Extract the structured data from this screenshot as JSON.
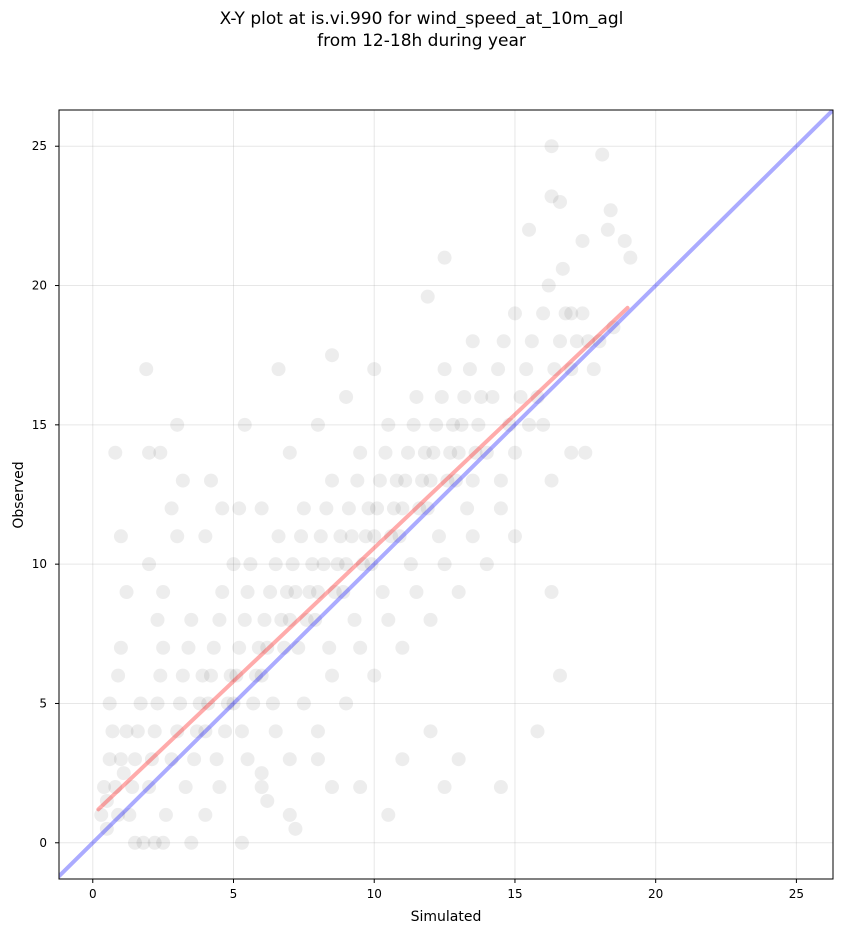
{
  "chart_data": {
    "type": "scatter",
    "title_lines": [
      "X-Y plot at is.vi.990 for wind_speed_at_10m_agl",
      "from 12-18h during year"
    ],
    "xlabel": "Simulated",
    "ylabel": "Observed",
    "xlim": [
      -1.2,
      26.3
    ],
    "ylim": [
      -1.3,
      26.3
    ],
    "xticks": [
      0,
      5,
      10,
      15,
      20,
      25
    ],
    "yticks": [
      0,
      5,
      10,
      15,
      20,
      25
    ],
    "grid": true,
    "point_color": "#000000",
    "point_alpha": 0.07,
    "one_to_one_color": "#0000ff",
    "fit_line_color": "#ff0000",
    "fit_line": {
      "x": [
        0.2,
        19.0
      ],
      "y": [
        1.2,
        19.2
      ]
    },
    "one_to_one_line": {
      "x": [
        -1.2,
        26.3
      ],
      "y": [
        -1.2,
        26.3
      ]
    },
    "points": [
      [
        0.3,
        1.0
      ],
      [
        0.4,
        2.0
      ],
      [
        0.5,
        1.5
      ],
      [
        0.6,
        3.0
      ],
      [
        0.5,
        0.5
      ],
      [
        0.8,
        2.0
      ],
      [
        0.9,
        1.0
      ],
      [
        1.0,
        3.0
      ],
      [
        1.1,
        2.5
      ],
      [
        1.2,
        4.0
      ],
      [
        0.7,
        4.0
      ],
      [
        0.6,
        5.0
      ],
      [
        0.9,
        6.0
      ],
      [
        1.0,
        7.0
      ],
      [
        1.3,
        1.0
      ],
      [
        1.4,
        2.0
      ],
      [
        1.5,
        3.0
      ],
      [
        1.6,
        4.0
      ],
      [
        1.7,
        5.0
      ],
      [
        1.8,
        0.0
      ],
      [
        2.0,
        2.0
      ],
      [
        2.1,
        3.0
      ],
      [
        2.2,
        4.0
      ],
      [
        2.3,
        5.0
      ],
      [
        2.4,
        6.0
      ],
      [
        2.5,
        7.0
      ],
      [
        2.6,
        1.0
      ],
      [
        2.2,
        0.0
      ],
      [
        2.3,
        8.0
      ],
      [
        2.5,
        9.0
      ],
      [
        2.8,
        3.0
      ],
      [
        3.0,
        4.0
      ],
      [
        3.1,
        5.0
      ],
      [
        3.2,
        6.0
      ],
      [
        3.3,
        2.0
      ],
      [
        3.4,
        7.0
      ],
      [
        3.5,
        8.0
      ],
      [
        3.6,
        3.0
      ],
      [
        3.7,
        4.0
      ],
      [
        3.8,
        5.0
      ],
      [
        3.9,
        6.0
      ],
      [
        4.0,
        4.0
      ],
      [
        4.1,
        5.0
      ],
      [
        4.2,
        6.0
      ],
      [
        4.3,
        7.0
      ],
      [
        4.4,
        3.0
      ],
      [
        4.5,
        8.0
      ],
      [
        4.6,
        9.0
      ],
      [
        4.7,
        4.0
      ],
      [
        4.8,
        5.0
      ],
      [
        4.9,
        6.0
      ],
      [
        5.0,
        5.0
      ],
      [
        5.1,
        6.0
      ],
      [
        5.2,
        7.0
      ],
      [
        5.3,
        4.0
      ],
      [
        5.4,
        8.0
      ],
      [
        5.5,
        9.0
      ],
      [
        5.6,
        10.0
      ],
      [
        5.7,
        5.0
      ],
      [
        5.8,
        6.0
      ],
      [
        5.9,
        7.0
      ],
      [
        6.0,
        6.0
      ],
      [
        6.1,
        8.0
      ],
      [
        6.2,
        7.0
      ],
      [
        6.3,
        9.0
      ],
      [
        6.4,
        5.0
      ],
      [
        6.5,
        10.0
      ],
      [
        6.6,
        11.0
      ],
      [
        6.7,
        8.0
      ],
      [
        6.8,
        7.0
      ],
      [
        6.9,
        9.0
      ],
      [
        7.0,
        8.0
      ],
      [
        7.1,
        10.0
      ],
      [
        7.2,
        9.0
      ],
      [
        7.3,
        7.0
      ],
      [
        7.4,
        11.0
      ],
      [
        7.5,
        12.0
      ],
      [
        7.6,
        8.0
      ],
      [
        7.7,
        9.0
      ],
      [
        7.8,
        10.0
      ],
      [
        7.9,
        8.0
      ],
      [
        8.0,
        9.0
      ],
      [
        8.1,
        11.0
      ],
      [
        8.2,
        10.0
      ],
      [
        8.3,
        12.0
      ],
      [
        8.4,
        7.0
      ],
      [
        8.5,
        13.0
      ],
      [
        8.6,
        9.0
      ],
      [
        8.7,
        10.0
      ],
      [
        8.8,
        11.0
      ],
      [
        8.9,
        9.0
      ],
      [
        9.0,
        10.0
      ],
      [
        9.1,
        12.0
      ],
      [
        9.2,
        11.0
      ],
      [
        9.3,
        8.0
      ],
      [
        9.4,
        13.0
      ],
      [
        9.5,
        14.0
      ],
      [
        9.6,
        10.0
      ],
      [
        9.7,
        11.0
      ],
      [
        9.8,
        12.0
      ],
      [
        9.9,
        10.0
      ],
      [
        10.0,
        11.0
      ],
      [
        10.1,
        12.0
      ],
      [
        10.2,
        13.0
      ],
      [
        10.3,
        9.0
      ],
      [
        10.4,
        14.0
      ],
      [
        10.5,
        15.0
      ],
      [
        10.6,
        11.0
      ],
      [
        10.7,
        12.0
      ],
      [
        10.8,
        13.0
      ],
      [
        10.9,
        11.0
      ],
      [
        11.0,
        12.0
      ],
      [
        11.1,
        13.0
      ],
      [
        11.2,
        14.0
      ],
      [
        11.3,
        10.0
      ],
      [
        11.4,
        15.0
      ],
      [
        11.5,
        16.0
      ],
      [
        11.6,
        12.0
      ],
      [
        11.7,
        13.0
      ],
      [
        11.8,
        14.0
      ],
      [
        11.9,
        12.0
      ],
      [
        12.0,
        13.0
      ],
      [
        12.1,
        14.0
      ],
      [
        12.2,
        15.0
      ],
      [
        12.3,
        11.0
      ],
      [
        12.4,
        16.0
      ],
      [
        12.5,
        17.0
      ],
      [
        12.6,
        13.0
      ],
      [
        12.7,
        14.0
      ],
      [
        12.8,
        15.0
      ],
      [
        12.9,
        13.0
      ],
      [
        13.0,
        14.0
      ],
      [
        13.1,
        15.0
      ],
      [
        13.2,
        16.0
      ],
      [
        13.3,
        12.0
      ],
      [
        13.4,
        17.0
      ],
      [
        13.5,
        18.0
      ],
      [
        13.6,
        14.0
      ],
      [
        13.7,
        15.0
      ],
      [
        13.8,
        16.0
      ],
      [
        14.0,
        14.0
      ],
      [
        14.2,
        16.0
      ],
      [
        14.4,
        17.0
      ],
      [
        14.6,
        18.0
      ],
      [
        14.8,
        15.0
      ],
      [
        15.0,
        19.0
      ],
      [
        15.2,
        16.0
      ],
      [
        15.4,
        17.0
      ],
      [
        15.6,
        18.0
      ],
      [
        15.8,
        16.0
      ],
      [
        16.0,
        19.0
      ],
      [
        16.2,
        20.0
      ],
      [
        16.4,
        17.0
      ],
      [
        16.6,
        18.0
      ],
      [
        16.8,
        19.0
      ],
      [
        17.0,
        17.0
      ],
      [
        17.2,
        18.0
      ],
      [
        17.4,
        19.0
      ],
      [
        17.6,
        18.0
      ],
      [
        17.8,
        17.0
      ],
      [
        0.8,
        14.0
      ],
      [
        1.9,
        17.0
      ],
      [
        2.0,
        14.0
      ],
      [
        2.4,
        14.0
      ],
      [
        3.0,
        15.0
      ],
      [
        3.2,
        13.0
      ],
      [
        4.2,
        13.0
      ],
      [
        4.6,
        12.0
      ],
      [
        5.4,
        15.0
      ],
      [
        6.6,
        17.0
      ],
      [
        8.5,
        17.5
      ],
      [
        11.9,
        19.6
      ],
      [
        12.5,
        21.0
      ],
      [
        15.5,
        22.0
      ],
      [
        16.3,
        25.0
      ],
      [
        16.3,
        23.2
      ],
      [
        16.6,
        23.0
      ],
      [
        18.1,
        24.7
      ],
      [
        18.4,
        22.7
      ],
      [
        18.9,
        21.6
      ],
      [
        17.4,
        21.6
      ],
      [
        19.1,
        21.0
      ],
      [
        16.7,
        20.6
      ],
      [
        18.3,
        22.0
      ],
      [
        16.3,
        13.0
      ],
      [
        16.3,
        9.0
      ],
      [
        16.6,
        6.0
      ],
      [
        15.8,
        4.0
      ],
      [
        14.5,
        2.0
      ],
      [
        12.5,
        2.0
      ],
      [
        13.0,
        3.0
      ],
      [
        12.0,
        4.0
      ],
      [
        11.0,
        3.0
      ],
      [
        10.5,
        1.0
      ],
      [
        9.5,
        2.0
      ],
      [
        8.5,
        2.0
      ],
      [
        8.0,
        3.0
      ],
      [
        7.0,
        1.0
      ],
      [
        7.2,
        0.5
      ],
      [
        5.3,
        0.0
      ],
      [
        6.0,
        2.0
      ],
      [
        6.5,
        4.0
      ],
      [
        7.5,
        5.0
      ],
      [
        8.5,
        6.0
      ],
      [
        9.5,
        7.0
      ],
      [
        10.5,
        8.0
      ],
      [
        11.5,
        9.0
      ],
      [
        12.5,
        10.0
      ],
      [
        13.5,
        11.0
      ],
      [
        14.5,
        12.0
      ],
      [
        3.5,
        0.0
      ],
      [
        4.0,
        1.0
      ],
      [
        4.5,
        2.0
      ],
      [
        5.5,
        3.0
      ],
      [
        6.2,
        1.5
      ],
      [
        2.5,
        0.0
      ],
      [
        1.5,
        0.0
      ],
      [
        3.0,
        11.0
      ],
      [
        2.0,
        10.0
      ],
      [
        1.2,
        9.0
      ],
      [
        1.0,
        11.0
      ],
      [
        2.8,
        12.0
      ],
      [
        4.0,
        11.0
      ],
      [
        5.0,
        10.0
      ],
      [
        5.2,
        12.0
      ],
      [
        6.0,
        12.0
      ],
      [
        7.0,
        14.0
      ],
      [
        8.0,
        15.0
      ],
      [
        9.0,
        16.0
      ],
      [
        10.0,
        17.0
      ],
      [
        15.0,
        11.0
      ],
      [
        14.0,
        10.0
      ],
      [
        13.0,
        9.0
      ],
      [
        12.0,
        8.0
      ],
      [
        11.0,
        7.0
      ],
      [
        10.0,
        6.0
      ],
      [
        9.0,
        5.0
      ],
      [
        8.0,
        4.0
      ],
      [
        7.0,
        3.0
      ],
      [
        6.0,
        2.5
      ],
      [
        17.0,
        14.0
      ],
      [
        16.0,
        15.0
      ],
      [
        15.0,
        14.0
      ],
      [
        14.5,
        13.0
      ],
      [
        13.5,
        13.0
      ],
      [
        15.5,
        15.0
      ],
      [
        17.5,
        14.0
      ],
      [
        18.0,
        18.0
      ],
      [
        18.5,
        18.5
      ],
      [
        17.0,
        19.0
      ]
    ]
  }
}
